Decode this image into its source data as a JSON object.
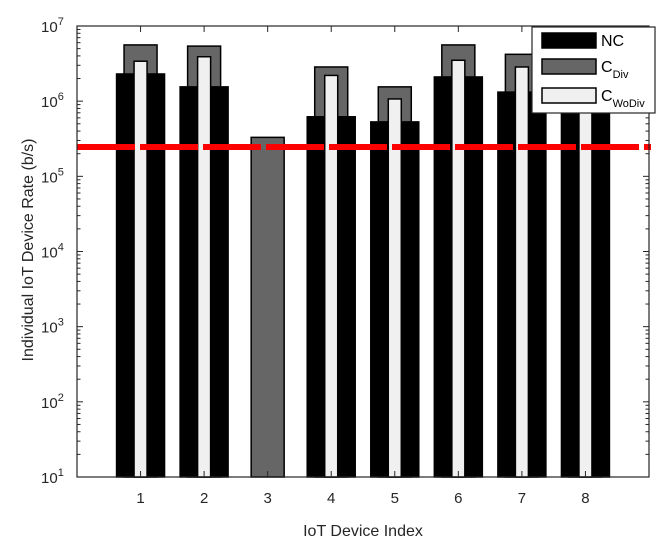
{
  "chart_data": {
    "type": "bar",
    "title": "",
    "xlabel": "IoT Device Index",
    "ylabel": "Individual IoT Device Rate (b/s)",
    "yscale": "log",
    "ylim": [
      10,
      10000000
    ],
    "xlim": [
      0,
      9
    ],
    "categories": [
      "1",
      "2",
      "3",
      "4",
      "5",
      "6",
      "7",
      "8"
    ],
    "y_tick_labels": [
      {
        "base": "10",
        "exp": "1",
        "value": 10
      },
      {
        "base": "10",
        "exp": "2",
        "value": 100
      },
      {
        "base": "10",
        "exp": "3",
        "value": 1000
      },
      {
        "base": "10",
        "exp": "4",
        "value": 10000
      },
      {
        "base": "10",
        "exp": "5",
        "value": 100000
      },
      {
        "base": "10",
        "exp": "6",
        "value": 1000000
      },
      {
        "base": "10",
        "exp": "7",
        "value": 10000000
      }
    ],
    "series": [
      {
        "name": "NC",
        "label_main": "NC",
        "label_sub": "",
        "color": "#000000",
        "values": [
          2300000,
          1550000,
          null,
          620000,
          530000,
          2100000,
          1320000,
          1500000
        ]
      },
      {
        "name": "C_Div",
        "label_main": "C",
        "label_sub": "Div",
        "color": "#666666",
        "values": [
          5600000,
          5400000,
          330000,
          2850000,
          1550000,
          5600000,
          4200000,
          4500000
        ]
      },
      {
        "name": "C_WoDiv",
        "label_main": "C",
        "label_sub": "WoDiv",
        "color": "#f0f0f0",
        "values": [
          3400000,
          3900000,
          null,
          2200000,
          1070000,
          3500000,
          2850000,
          3000000
        ]
      }
    ],
    "reference_line": {
      "value": 246000,
      "style": "dashed",
      "color": "#ff0000"
    },
    "legend_position": "northeast",
    "grid": false
  }
}
